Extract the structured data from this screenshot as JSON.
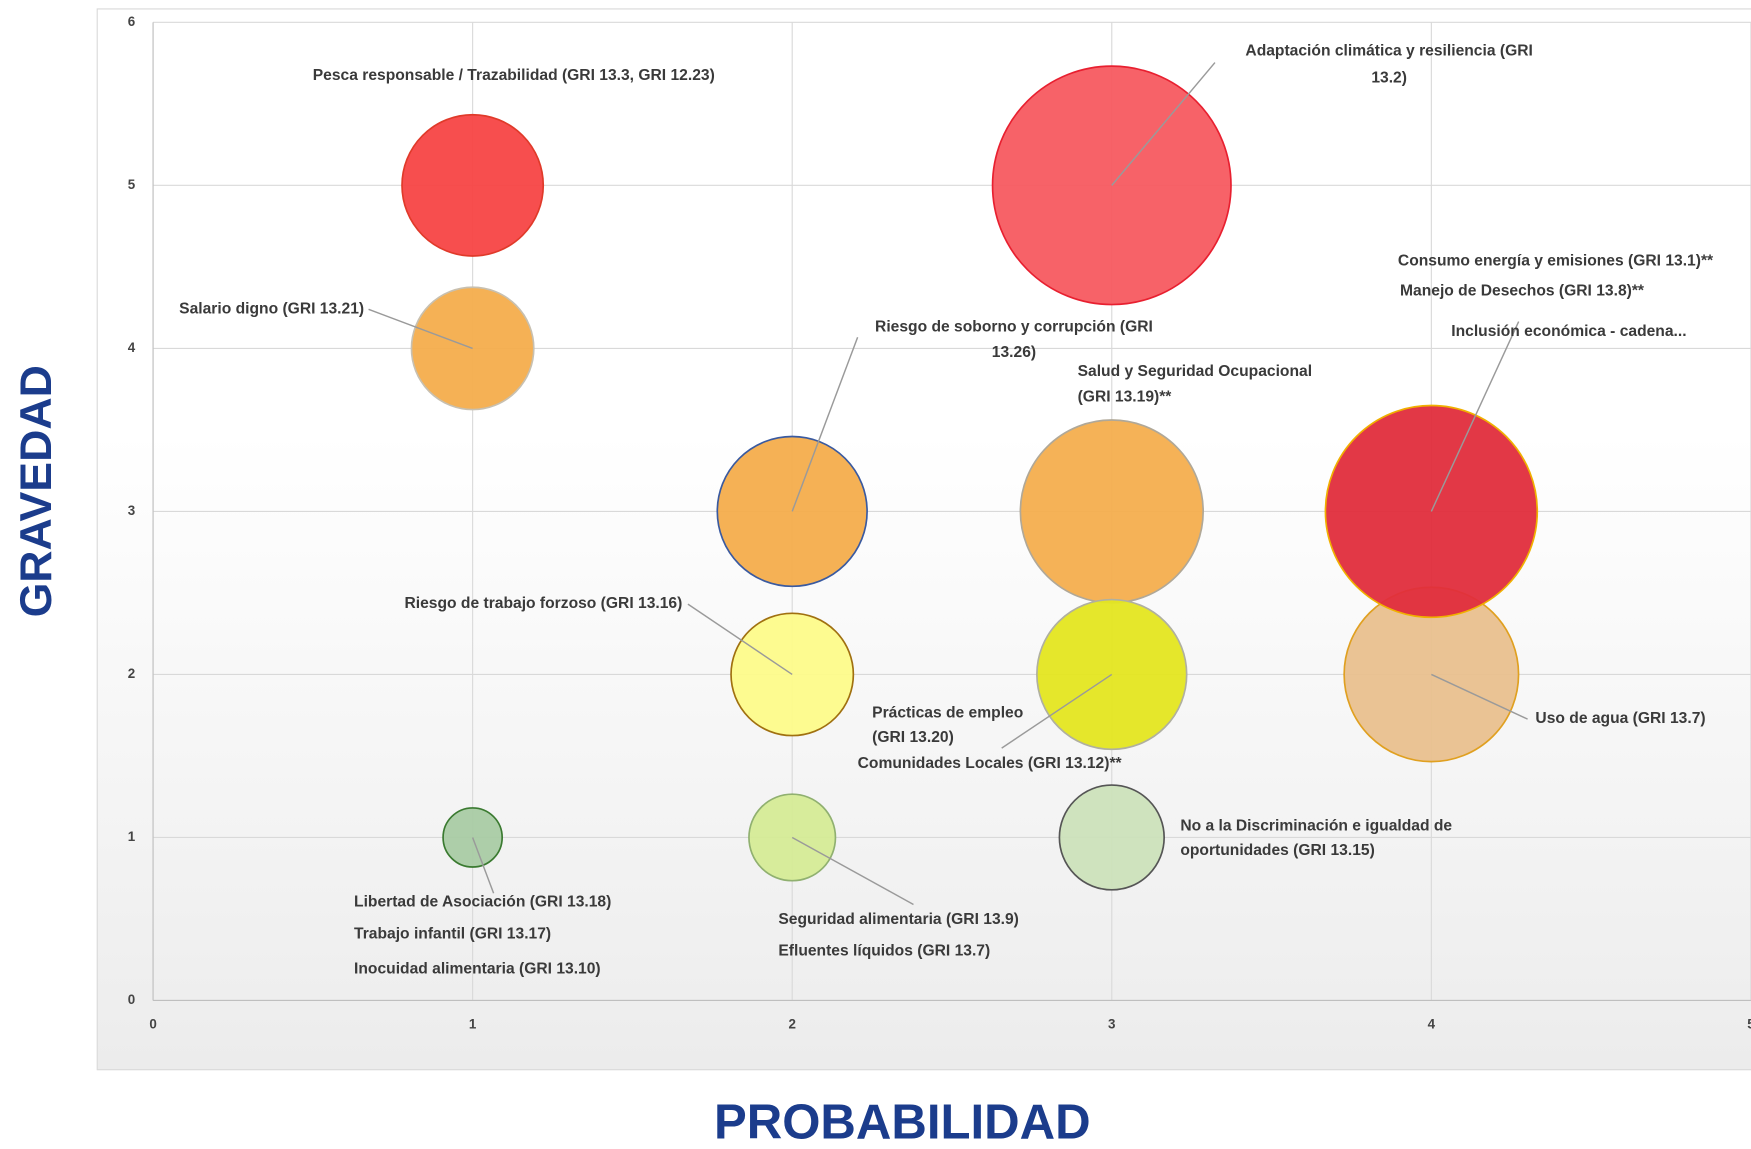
{
  "chart_data": {
    "type": "bubble",
    "xlabel": "PROBABILIDAD",
    "ylabel": "GRAVEDAD",
    "xlim": [
      0,
      5
    ],
    "ylim": [
      0,
      6
    ],
    "xticks": [
      0,
      1,
      2,
      3,
      4,
      5
    ],
    "yticks": [
      0,
      1,
      2,
      3,
      4,
      5,
      6
    ],
    "grid": true,
    "x": [
      1,
      3,
      1,
      2,
      3,
      4,
      4,
      2,
      3,
      1,
      2,
      3
    ],
    "values": [
      5,
      5,
      4,
      3,
      3,
      2,
      3,
      2,
      2,
      1,
      1,
      1
    ],
    "sizes": [
      40,
      114,
      30,
      45,
      67,
      61,
      90,
      30,
      45,
      7,
      15,
      22
    ],
    "colors": [
      "#f74545",
      "#f75a60",
      "#f4ad4c",
      "#f4ad4c",
      "#f4ae4e",
      "#e9c08e",
      "#e02d3c",
      "#fdfb8a",
      "#e4e620",
      "#a9cba4",
      "#d5eb96",
      "#cce2bb"
    ],
    "edge_colors": [
      "#e03a2a",
      "#e82030",
      "#c8c0b0",
      "#3a5aa0",
      "#b0a898",
      "#e0a020",
      "#f0b000",
      "#a07010",
      "#b0b0a0",
      "#3a7a30",
      "#90b070",
      "#555555"
    ],
    "labels": [
      [
        "Pesca responsable / Trazabilidad (GRI 13.3, GRI 12.23)"
      ],
      [
        "Adaptación climática y resiliencia (GRI",
        "13.2)"
      ],
      [
        "Salario digno (GRI 13.21)"
      ],
      [
        "Riesgo de soborno y corrupción (GRI",
        "13.26)"
      ],
      [
        "Salud y Seguridad Ocupacional",
        "(GRI 13.19)**"
      ],
      [
        "Uso de agua (GRI 13.7)"
      ],
      [
        "Consumo energía y emisiones (GRI 13.1)**",
        "Manejo de Desechos (GRI 13.8)**",
        "Inclusión económica - cadena..."
      ],
      [
        "Riesgo de trabajo forzoso (GRI 13.16)"
      ],
      [
        "Prácticas de empleo",
        "(GRI 13.20)",
        "Comunidades Locales (GRI 13.12)**"
      ],
      [
        "Libertad de Asociación (GRI 13.18)",
        "Trabajo infantil (GRI 13.17)",
        "Inocuidad alimentaria (GRI 13.10)"
      ],
      [
        "Seguridad alimentaria (GRI 13.9)",
        "Efluentes líquidos (GRI 13.7)"
      ],
      [
        "No a la Discriminación e igualdad de",
        "oportunidades (GRI 13.15)"
      ]
    ]
  }
}
